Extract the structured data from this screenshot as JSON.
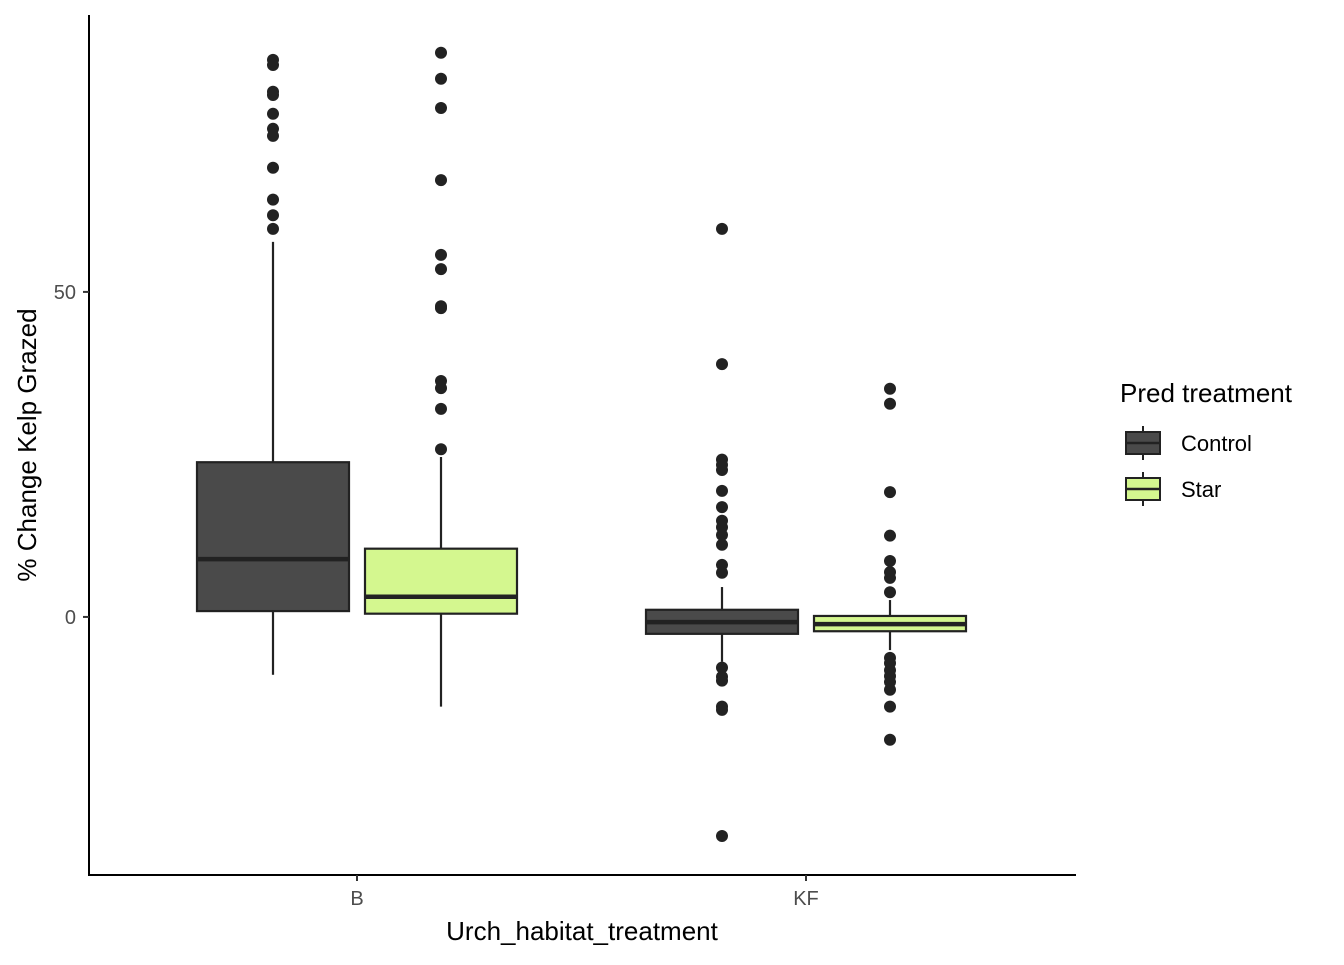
{
  "chart_data": {
    "type": "boxplot",
    "title": "",
    "xlabel": "Urch_habitat_treatment",
    "ylabel": "% Change Kelp Grazed",
    "ylim": [
      -39.7,
      92.6
    ],
    "yticks": [
      0,
      50
    ],
    "ytick_labels": [
      "0",
      "50"
    ],
    "categories": [
      "B",
      "KF"
    ],
    "legend": {
      "title": "Pred treatment",
      "position": "right",
      "entries": [
        "Control",
        "Star"
      ]
    },
    "colors": {
      "Control": "#4a4a4a",
      "Star": "#d4f78f",
      "outline": "#222222"
    },
    "series": [
      {
        "name": "Control",
        "boxes": [
          {
            "category": "B",
            "lower_whisker": -8.9,
            "q1": 0.9,
            "median": 8.9,
            "q3": 23.8,
            "upper_whisker": 57.7,
            "outliers": [
              85.7,
              84.9,
              80.8,
              80.3,
              77.4,
              75.1,
              74.0,
              69.1,
              64.2,
              61.8,
              59.7
            ]
          },
          {
            "category": "KF",
            "lower_whisker": -6.9,
            "q1": -2.6,
            "median": -0.8,
            "q3": 1.1,
            "upper_whisker": 4.6,
            "outliers": [
              59.7,
              38.9,
              24.2,
              23.4,
              22.6,
              19.4,
              16.9,
              14.8,
              13.8,
              12.6,
              11.1,
              8.0,
              6.8,
              -7.8,
              -9.2,
              -9.8,
              -13.8,
              -14.3,
              -33.7
            ]
          }
        ]
      },
      {
        "name": "Star",
        "boxes": [
          {
            "category": "B",
            "lower_whisker": -13.8,
            "q1": 0.5,
            "median": 3.1,
            "q3": 10.5,
            "upper_whisker": 24.6,
            "outliers": [
              86.8,
              82.8,
              78.3,
              67.2,
              55.7,
              53.5,
              47.8,
              47.5,
              36.3,
              35.2,
              32.0,
              25.8
            ]
          },
          {
            "category": "KF",
            "lower_whisker": -5.1,
            "q1": -2.2,
            "median": -1.1,
            "q3": 0.15,
            "upper_whisker": 2.6,
            "outliers": [
              35.1,
              32.8,
              19.2,
              12.5,
              8.6,
              6.9,
              6.0,
              3.8,
              -6.3,
              -7.1,
              -8.2,
              -9.1,
              -10.0,
              -11.2,
              -13.8,
              -18.9
            ]
          }
        ]
      }
    ]
  }
}
